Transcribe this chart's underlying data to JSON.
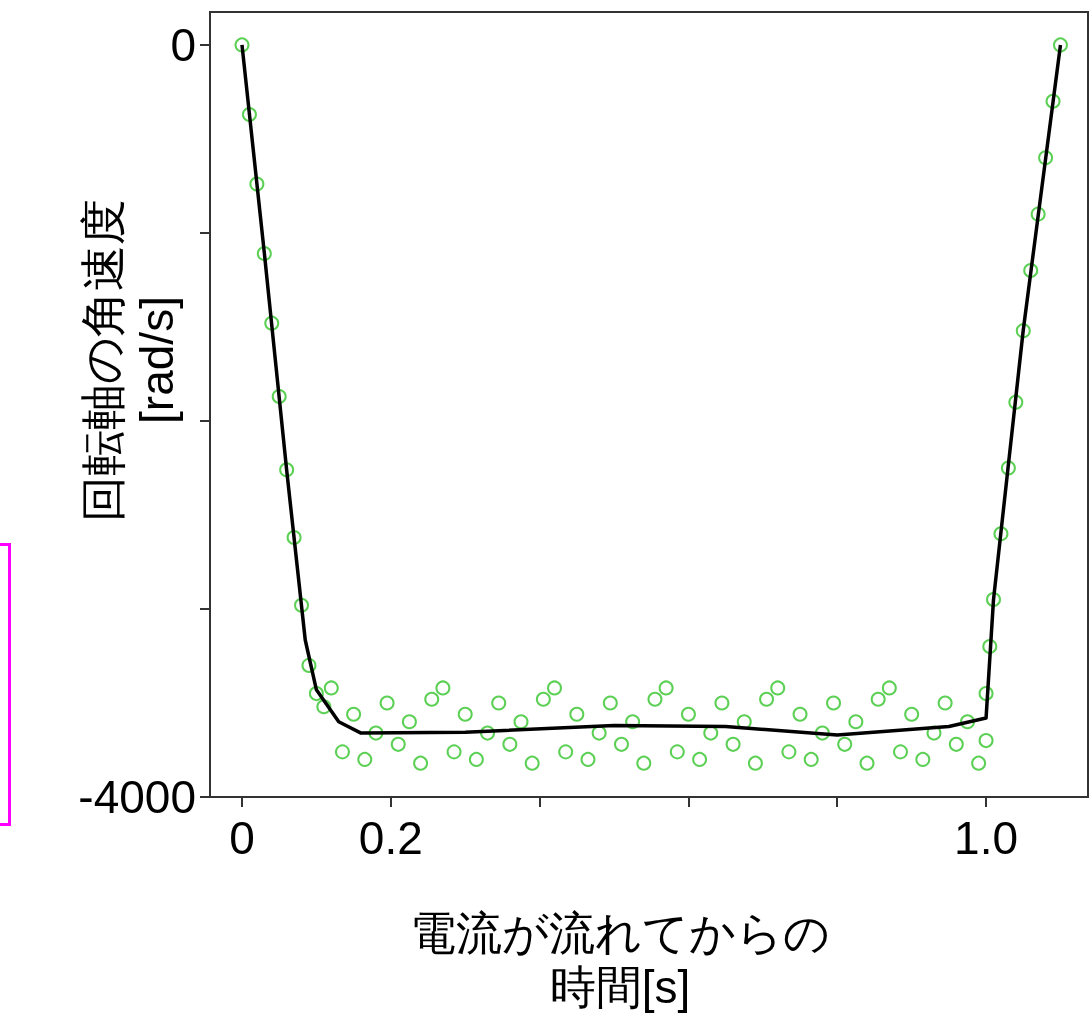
{
  "chart_data": {
    "type": "scatter",
    "xlabel": "電流が流れてからの時間[s]",
    "ylabel": "回転軸の角速度[rad/s]",
    "xlim": [
      -0.043,
      1.137
    ],
    "xticks": [
      0,
      0.2,
      {
        "value": 0.4,
        "label": null
      },
      {
        "value": 0.6,
        "label": null
      },
      {
        "value": 0.8,
        "label": null
      },
      {
        "value": 1.0,
        "label": "1.0"
      }
    ],
    "ylim": [
      -4000,
      175
    ],
    "yticks": [
      0,
      {
        "value": -1000,
        "label": null
      },
      {
        "value": -2000,
        "label": null
      },
      {
        "value": -3000,
        "label": null
      },
      -4000
    ],
    "grid": false,
    "marker": "circle",
    "series": [
      {
        "type": "scatter",
        "color": "#33c42a",
        "x": [
          0,
          0.01,
          0.02,
          0.03,
          0.04,
          0.05,
          0.06,
          0.07,
          0.08,
          0.09,
          0.1,
          0.11,
          0.12,
          0.135,
          0.15,
          0.165,
          0.18,
          0.195,
          0.21,
          0.225,
          0.24,
          0.255,
          0.27,
          0.285,
          0.3,
          0.315,
          0.33,
          0.345,
          0.36,
          0.375,
          0.39,
          0.405,
          0.42,
          0.435,
          0.45,
          0.465,
          0.48,
          0.495,
          0.51,
          0.525,
          0.54,
          0.555,
          0.57,
          0.585,
          0.6,
          0.615,
          0.63,
          0.645,
          0.66,
          0.675,
          0.69,
          0.705,
          0.72,
          0.735,
          0.75,
          0.765,
          0.78,
          0.795,
          0.81,
          0.825,
          0.84,
          0.855,
          0.87,
          0.885,
          0.9,
          0.915,
          0.93,
          0.945,
          0.96,
          0.975,
          0.99,
          1.0,
          1.0,
          1.005,
          1.01,
          1.02,
          1.03,
          1.04,
          1.05,
          1.06,
          1.07,
          1.08,
          1.09,
          1.1
        ],
        "values": [
          0,
          -370,
          -740,
          -1110,
          -1480,
          -1870,
          -2260,
          -2620,
          -2980,
          -3300,
          -3450,
          -3520,
          -3420,
          -3760,
          -3560,
          -3800,
          -3660,
          -3500,
          -3720,
          -3600,
          -3820,
          -3480,
          -3420,
          -3760,
          -3560,
          -3800,
          -3660,
          -3500,
          -3720,
          -3600,
          -3820,
          -3480,
          -3420,
          -3760,
          -3560,
          -3800,
          -3660,
          -3500,
          -3720,
          -3600,
          -3820,
          -3480,
          -3420,
          -3760,
          -3560,
          -3800,
          -3660,
          -3500,
          -3720,
          -3600,
          -3820,
          -3480,
          -3420,
          -3760,
          -3560,
          -3800,
          -3660,
          -3500,
          -3720,
          -3600,
          -3820,
          -3480,
          -3420,
          -3760,
          -3560,
          -3800,
          -3660,
          -3500,
          -3720,
          -3600,
          -3820,
          -3700,
          -3450,
          -3200,
          -2950,
          -2600,
          -2250,
          -1900,
          -1520,
          -1200,
          -900,
          -600,
          -300,
          0
        ]
      },
      {
        "type": "line",
        "color": "#000000",
        "marker": "none",
        "line_style": "solid",
        "x": [
          0,
          0.03,
          0.06,
          0.085,
          0.1,
          0.13,
          0.16,
          0.3,
          0.5,
          0.65,
          0.8,
          0.95,
          1.0,
          1.01,
          1.05,
          1.1
        ],
        "values": [
          0,
          -1106,
          -2260,
          -3165,
          -3430,
          -3600,
          -3660,
          -3655,
          -3620,
          -3625,
          -3670,
          -3625,
          -3580,
          -2950,
          -1516,
          0
        ]
      }
    ]
  }
}
